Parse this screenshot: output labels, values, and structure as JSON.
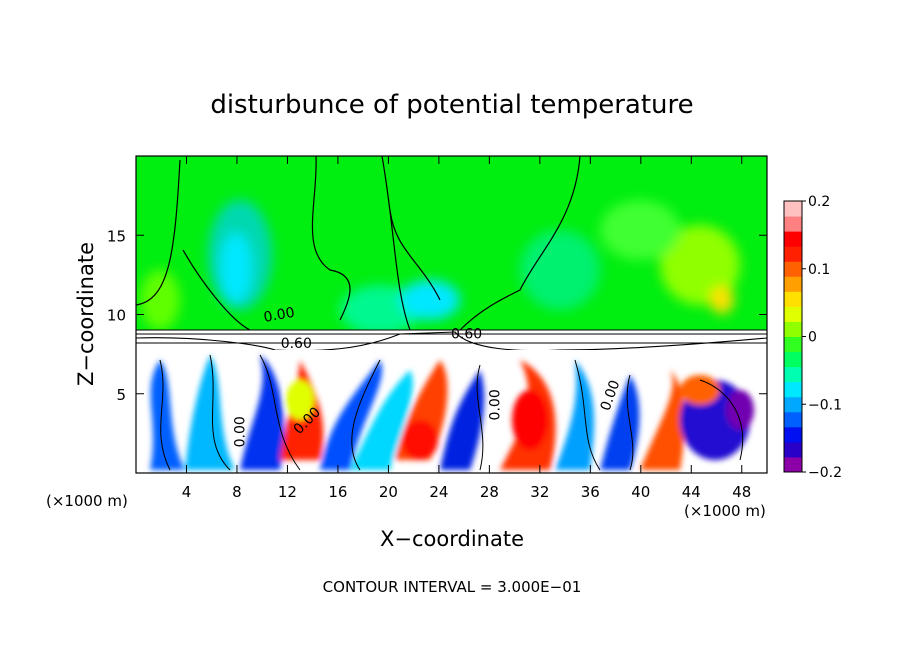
{
  "chart_data": {
    "type": "heatmap",
    "title": "disturbunce of potential temperature",
    "xlabel": "X−coordinate",
    "ylabel": "Z−coordinate",
    "x_unit_left": "(×1000 m)",
    "x_unit_right": "(×1000 m)",
    "footer": "CONTOUR INTERVAL = 3.000E−01",
    "xlim": [
      0,
      50
    ],
    "ylim": [
      0,
      20
    ],
    "x_ticks": [
      4,
      8,
      12,
      16,
      20,
      24,
      28,
      32,
      36,
      40,
      44,
      48
    ],
    "x_tick_labels": [
      "4",
      "8",
      "12",
      "16",
      "20",
      "24",
      "28",
      "32",
      "36",
      "40",
      "44",
      "48"
    ],
    "y_ticks": [
      5,
      10,
      15
    ],
    "y_tick_labels": [
      "5",
      "10",
      "15"
    ],
    "colorbar": {
      "min": -0.2,
      "max": 0.2,
      "ticks": [
        0.2,
        0.1,
        0,
        -0.1,
        -0.2
      ],
      "tick_labels": [
        "0.2",
        "0.1",
        "0",
        "−0.1",
        "−0.2"
      ],
      "colors": [
        "#8c00a8",
        "#2800c8",
        "#0010f0",
        "#0060ff",
        "#00a8ff",
        "#00e8ff",
        "#00ffb0",
        "#00ff60",
        "#30ff20",
        "#90ff00",
        "#e0ff00",
        "#ffe000",
        "#ffa000",
        "#ff6000",
        "#ff2000",
        "#ff0000",
        "#ff8080",
        "#ffc0c0"
      ]
    },
    "contour_labels": [
      {
        "text": "0.00",
        "x": 11.4,
        "z": 9.7,
        "angle": -10
      },
      {
        "text": "0.60",
        "x": 12.7,
        "z": 7.9,
        "angle": 0
      },
      {
        "text": "0.60",
        "x": 26.2,
        "z": 8.5,
        "angle": 0
      },
      {
        "text": "0.00",
        "x": 8.6,
        "z": 2.6,
        "angle": -90
      },
      {
        "text": "0.00",
        "x": 13.8,
        "z": 3.1,
        "angle": -45
      },
      {
        "text": "0.00",
        "x": 28.8,
        "z": 4.3,
        "angle": -90
      },
      {
        "text": "0.00",
        "x": 37.9,
        "z": 4.8,
        "angle": -70
      }
    ]
  }
}
